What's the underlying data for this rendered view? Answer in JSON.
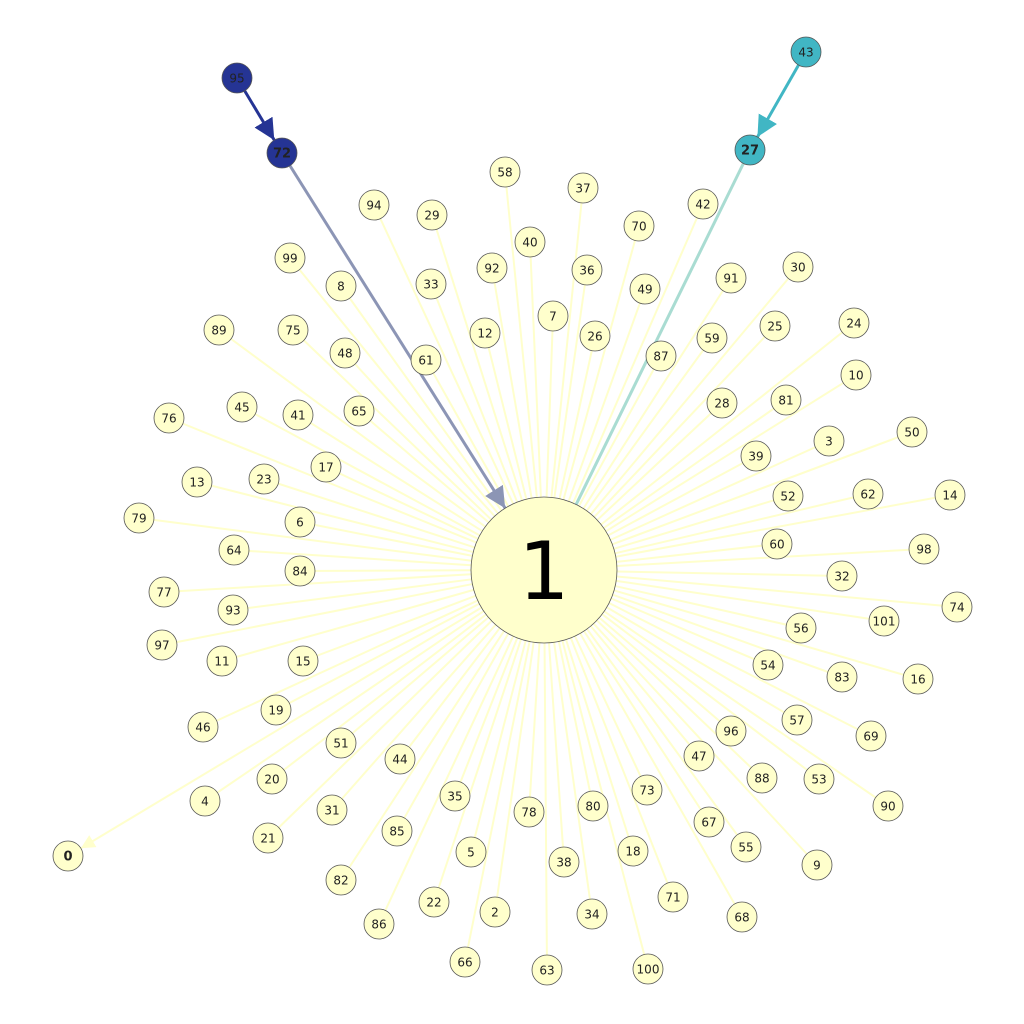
{
  "graph": {
    "hub": {
      "id": "1"
    },
    "palette": {
      "leaf_fill": "#ffffcc",
      "leaf_edge": "#ffffcc",
      "hub_fill": "#ffffcc",
      "node_stroke": "#555555",
      "navy": "#253494",
      "navy_edge": "#8c95b5",
      "teal": "#41b6c4",
      "teal_edge": "#a9dcd2"
    },
    "leaves": [
      "58",
      "37",
      "94",
      "29",
      "42",
      "70",
      "40",
      "92",
      "36",
      "99",
      "8",
      "33",
      "91",
      "30",
      "49",
      "7",
      "89",
      "75",
      "12",
      "26",
      "59",
      "25",
      "24",
      "48",
      "61",
      "87",
      "10",
      "76",
      "45",
      "41",
      "65",
      "28",
      "81",
      "3",
      "50",
      "13",
      "23",
      "17",
      "39",
      "62",
      "14",
      "79",
      "6",
      "52",
      "64",
      "84",
      "60",
      "98",
      "32",
      "77",
      "93",
      "74",
      "56",
      "101",
      "97",
      "11",
      "15",
      "54",
      "83",
      "16",
      "46",
      "19",
      "57",
      "69",
      "96",
      "51",
      "47",
      "44",
      "20",
      "88",
      "53",
      "4",
      "90",
      "35",
      "80",
      "73",
      "78",
      "31",
      "67",
      "55",
      "21",
      "85",
      "5",
      "18",
      "9",
      "38",
      "82",
      "71",
      "22",
      "2",
      "34",
      "68",
      "86",
      "66",
      "63",
      "100"
    ],
    "outgoing": [
      "0"
    ],
    "chains": [
      {
        "nodes": [
          "95",
          "72"
        ],
        "color": "navy"
      },
      {
        "nodes": [
          "43",
          "27"
        ],
        "color": "teal"
      }
    ]
  }
}
